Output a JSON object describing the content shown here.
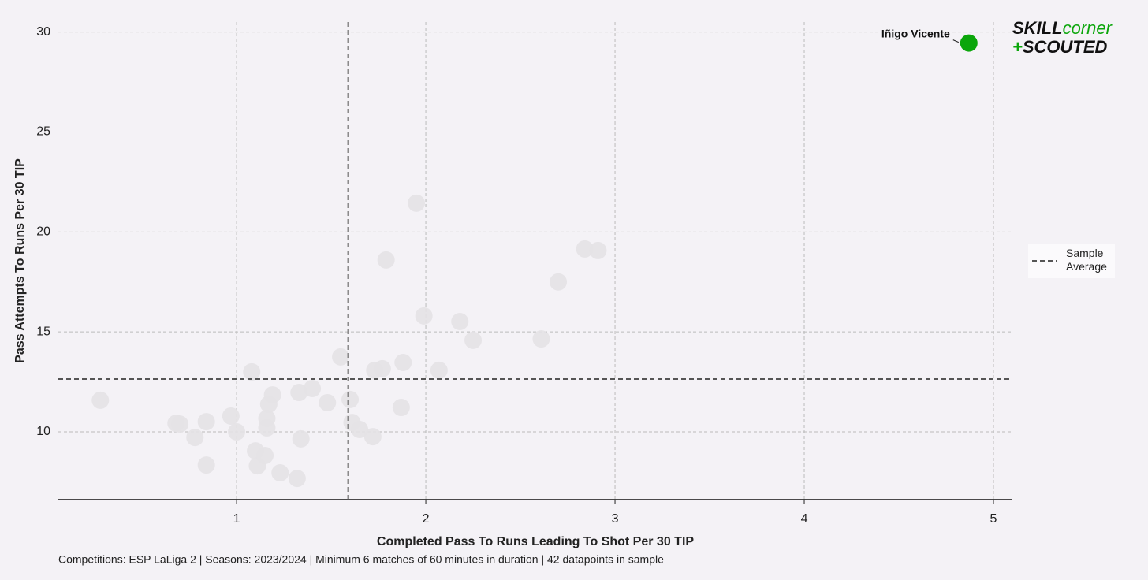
{
  "chart_data": {
    "type": "scatter",
    "xlabel": "Completed Pass To Runs Leading To Shot Per 30 TIP",
    "ylabel": "Pass Attempts To Runs Per 30 TIP",
    "footnote": "Competitions: ESP LaLiga 2 | Seasons: 2023/2024 | Minimum 6 matches of 60 minutes in duration | 42 datapoints in sample",
    "x": [
      0.28,
      0.68,
      0.7,
      0.78,
      0.84,
      0.84,
      0.97,
      1.0,
      1.08,
      1.1,
      1.11,
      1.15,
      1.16,
      1.16,
      1.17,
      1.19,
      1.23,
      1.32,
      1.33,
      1.34,
      1.4,
      1.48,
      1.55,
      1.6,
      1.61,
      1.65,
      1.72,
      1.73,
      1.77,
      1.79,
      1.87,
      1.88,
      1.95,
      1.99,
      2.07,
      2.18,
      2.25,
      2.61,
      2.7,
      2.84,
      2.91
    ],
    "values": [
      11.58,
      10.43,
      10.39,
      9.72,
      10.51,
      8.34,
      10.79,
      10.0,
      13.0,
      9.05,
      8.3,
      8.82,
      10.67,
      10.2,
      11.38,
      11.85,
      7.95,
      7.67,
      11.97,
      9.65,
      12.17,
      11.46,
      13.75,
      11.62,
      10.47,
      10.12,
      9.76,
      13.08,
      13.16,
      18.6,
      11.22,
      13.47,
      21.44,
      15.8,
      13.08,
      15.52,
      14.58,
      14.65,
      17.5,
      19.15,
      19.07
    ],
    "color": "#e4e2e6",
    "annotations": [
      {
        "text": "Iñigo Vicente",
        "x": 4.87,
        "y": 29.45,
        "color": "#0ba60b"
      }
    ],
    "reference_lines": {
      "x": 1.59,
      "y": 12.64,
      "label": "Sample Average",
      "color": "#555555"
    },
    "xlim": [
      0.058,
      5.1
    ],
    "ylim": [
      6.61,
      30.5
    ],
    "xticks": [
      1,
      2,
      3,
      4,
      5
    ],
    "yticks": [
      10,
      15,
      20,
      25,
      30
    ],
    "grid": true,
    "logo": {
      "skill": "SKILL",
      "corner": "corner",
      "plus": "+",
      "scouted": "SCOUTED"
    }
  }
}
